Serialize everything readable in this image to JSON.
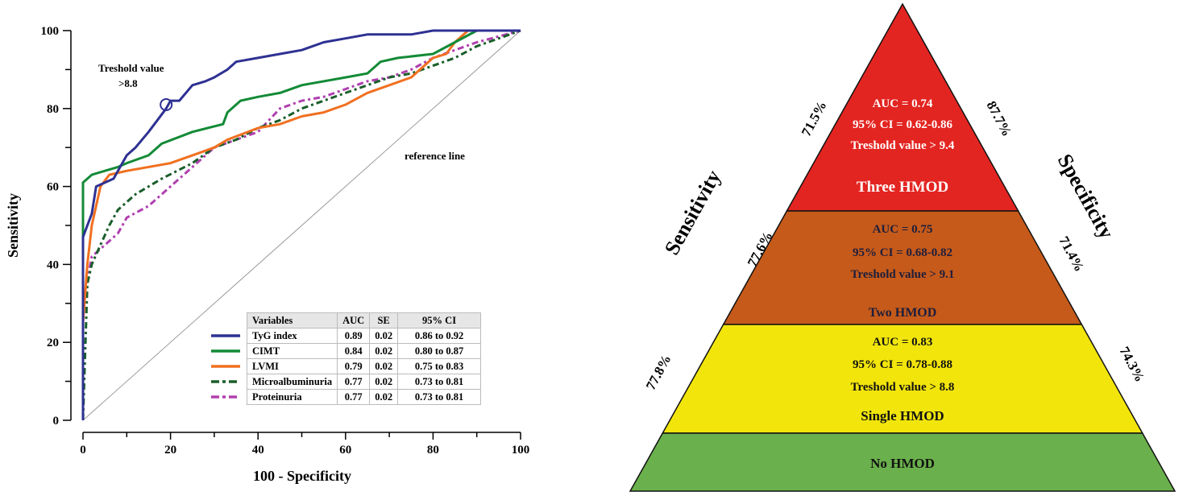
{
  "chart_data": [
    {
      "type": "line",
      "xlabel": "100 - Specificity",
      "ylabel": "Sensitivity",
      "xlim": [
        0,
        100
      ],
      "ylim": [
        0,
        100
      ],
      "x_ticks": [
        "0",
        "20",
        "40",
        "60",
        "80",
        "100"
      ],
      "y_ticks": [
        "0",
        "20",
        "40",
        "60",
        "80",
        "100"
      ],
      "grid": false,
      "legend_placement": "bottom-right",
      "annotations": {
        "threshold_line1": "Treshold value",
        "threshold_line2": ">8.8",
        "threshold_point": [
          19,
          81
        ],
        "reference": "reference line"
      },
      "reference_line": [
        [
          0,
          0
        ],
        [
          100,
          100
        ]
      ],
      "table": {
        "headers": [
          "Variables",
          "AUC",
          "SE",
          "95% CI"
        ],
        "rows": [
          [
            "TyG index",
            "0.89",
            "0.02",
            "0.86  to 0.92"
          ],
          [
            "CIMT",
            "0.84",
            "0.02",
            "0.80  to 0.87"
          ],
          [
            "LVMI",
            "0.79",
            "0.02",
            "0.75  to 0.83"
          ],
          [
            "Microalbuminuria",
            "0.77",
            "0.02",
            "0.73  to 0.81"
          ],
          [
            "Proteinuria",
            "0.77",
            "0.02",
            "0.73  to 0.81"
          ]
        ]
      },
      "series": [
        {
          "name": "TyG index",
          "color": "#2e3192",
          "dash": "solid",
          "points": [
            [
              0,
              0
            ],
            [
              0,
              40
            ],
            [
              0,
              47
            ],
            [
              1,
              50
            ],
            [
              2,
              53
            ],
            [
              3,
              60
            ],
            [
              5,
              61
            ],
            [
              7,
              62
            ],
            [
              8,
              64
            ],
            [
              10,
              68
            ],
            [
              12,
              70
            ],
            [
              15,
              74
            ],
            [
              17,
              77
            ],
            [
              19,
              80
            ],
            [
              20,
              82
            ],
            [
              22,
              82
            ],
            [
              25,
              86
            ],
            [
              28,
              87
            ],
            [
              30,
              88
            ],
            [
              33,
              90
            ],
            [
              35,
              92
            ],
            [
              40,
              93
            ],
            [
              45,
              94
            ],
            [
              50,
              95
            ],
            [
              55,
              97
            ],
            [
              60,
              98
            ],
            [
              65,
              99
            ],
            [
              75,
              99
            ],
            [
              80,
              100
            ],
            [
              100,
              100
            ]
          ]
        },
        {
          "name": "CIMT",
          "color": "#138a36",
          "dash": "solid",
          "points": [
            [
              0,
              0
            ],
            [
              0,
              61
            ],
            [
              2,
              63
            ],
            [
              5,
              64
            ],
            [
              8,
              65
            ],
            [
              10,
              66
            ],
            [
              15,
              68
            ],
            [
              18,
              71
            ],
            [
              25,
              74
            ],
            [
              32,
              76
            ],
            [
              33,
              79
            ],
            [
              36,
              82
            ],
            [
              40,
              83
            ],
            [
              45,
              84
            ],
            [
              50,
              86
            ],
            [
              60,
              88
            ],
            [
              65,
              89
            ],
            [
              68,
              92
            ],
            [
              72,
              93
            ],
            [
              80,
              94
            ],
            [
              85,
              97
            ],
            [
              90,
              100
            ],
            [
              100,
              100
            ]
          ]
        },
        {
          "name": "LVMI",
          "color": "#f07020",
          "dash": "solid",
          "points": [
            [
              0,
              0
            ],
            [
              0,
              25
            ],
            [
              1,
              40
            ],
            [
              2,
              50
            ],
            [
              3,
              55
            ],
            [
              4,
              60
            ],
            [
              6,
              63
            ],
            [
              10,
              64
            ],
            [
              20,
              66
            ],
            [
              25,
              68
            ],
            [
              30,
              70
            ],
            [
              33,
              72
            ],
            [
              40,
              75
            ],
            [
              45,
              76
            ],
            [
              50,
              78
            ],
            [
              55,
              79
            ],
            [
              60,
              81
            ],
            [
              65,
              84
            ],
            [
              70,
              86
            ],
            [
              75,
              88
            ],
            [
              80,
              93
            ],
            [
              83,
              94
            ],
            [
              85,
              97
            ],
            [
              88,
              100
            ],
            [
              100,
              100
            ]
          ]
        },
        {
          "name": "Microalbuminuria",
          "color": "#1a5e2a",
          "dash": "dashdot",
          "points": [
            [
              0,
              0
            ],
            [
              1,
              35
            ],
            [
              2,
              40
            ],
            [
              4,
              45
            ],
            [
              6,
              50
            ],
            [
              8,
              54
            ],
            [
              12,
              58
            ],
            [
              18,
              62
            ],
            [
              25,
              66
            ],
            [
              30,
              70
            ],
            [
              35,
              72
            ],
            [
              40,
              75
            ],
            [
              45,
              77
            ],
            [
              50,
              80
            ],
            [
              55,
              82
            ],
            [
              60,
              84
            ],
            [
              65,
              86
            ],
            [
              70,
              88
            ],
            [
              75,
              89
            ],
            [
              80,
              91
            ],
            [
              85,
              93
            ],
            [
              90,
              96
            ],
            [
              95,
              98
            ],
            [
              100,
              100
            ]
          ]
        },
        {
          "name": "Proteinuria",
          "color": "#b040b0",
          "dash": "dashdot",
          "points": [
            [
              0,
              0
            ],
            [
              0,
              30
            ],
            [
              2,
              42
            ],
            [
              5,
              45
            ],
            [
              8,
              48
            ],
            [
              10,
              52
            ],
            [
              15,
              55
            ],
            [
              20,
              60
            ],
            [
              25,
              65
            ],
            [
              30,
              70
            ],
            [
              35,
              72
            ],
            [
              40,
              74
            ],
            [
              45,
              80
            ],
            [
              50,
              82
            ],
            [
              55,
              83
            ],
            [
              60,
              85
            ],
            [
              65,
              87
            ],
            [
              70,
              88
            ],
            [
              75,
              90
            ],
            [
              80,
              93
            ],
            [
              85,
              95
            ],
            [
              90,
              97
            ],
            [
              100,
              100
            ]
          ]
        }
      ]
    }
  ],
  "pyramid": {
    "left_axis": "Sensitivity",
    "right_axis": "Specificity",
    "levels": [
      {
        "label": "Three HMOD",
        "auc": "AUC = 0.74",
        "ci": "95% CI = 0.62-0.86",
        "threshold": "Treshold value > 9.4",
        "sensitivity": "71.5%",
        "specificity": "87.7%",
        "color": "#e32521",
        "text_color": "#ffffff"
      },
      {
        "label": "Two HMOD",
        "auc": "AUC = 0.75",
        "ci": "95% CI = 0.68-0.82",
        "threshold": "Treshold value > 9.1",
        "sensitivity": "77.6%",
        "specificity": "71.4%",
        "color": "#c55a1a",
        "text_color": "#1e1e3c"
      },
      {
        "label": "Single HMOD",
        "auc": "AUC = 0.83",
        "ci": "95% CI = 0.78-0.88",
        "threshold": "Treshold value > 8.8",
        "sensitivity": "77.8%",
        "specificity": "74.3%",
        "color": "#f2e50b",
        "text_color": "#111111"
      },
      {
        "label": "No HMOD",
        "color": "#6ab04c",
        "text_color": "#111111"
      }
    ]
  }
}
